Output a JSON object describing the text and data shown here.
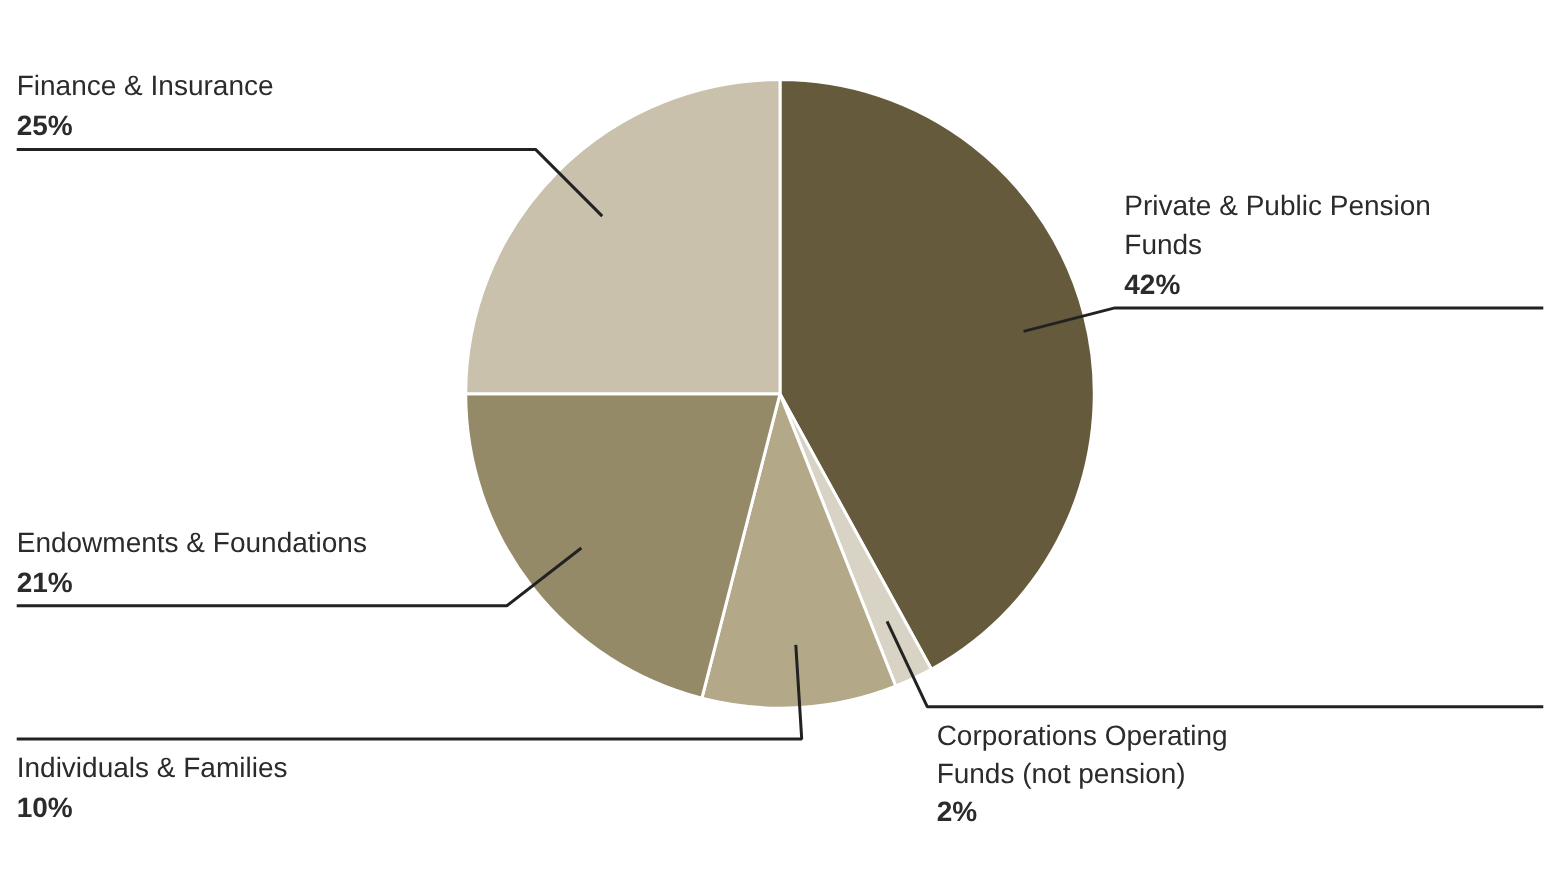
{
  "chart_data": {
    "type": "pie",
    "categories": [
      "Private & Public Pension Funds",
      "Corporations Operating Funds (not pension)",
      "Individuals & Families",
      "Endowments & Foundations",
      "Finance & Insurance"
    ],
    "values": [
      42,
      2,
      10,
      21,
      25
    ],
    "colors": [
      "#655a3c",
      "#d8d3c5",
      "#b3a888",
      "#958a68",
      "#c9c1ab"
    ],
    "value_labels": [
      "42%",
      "2%",
      "10%",
      "21%",
      "25%"
    ]
  }
}
